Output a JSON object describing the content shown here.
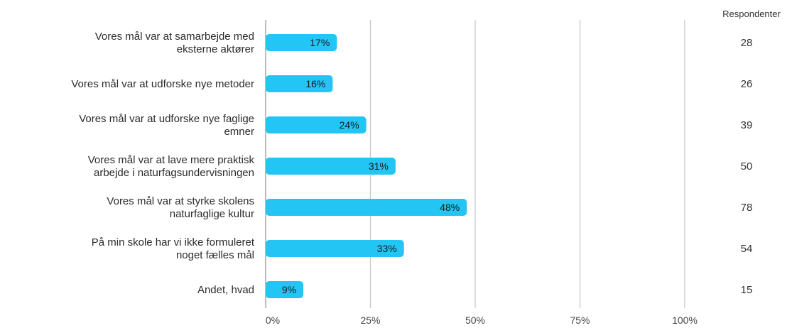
{
  "colors": {
    "bar": "#22c5f4",
    "grid": "#c8c8c8",
    "axis": "#9a9a9a"
  },
  "chart_data": {
    "type": "bar",
    "orientation": "horizontal",
    "categories": [
      [
        "Vores mål var at samarbejde med",
        "eksterne aktører"
      ],
      [
        "Vores mål var at udforske nye metoder"
      ],
      [
        "Vores mål var at udforske nye faglige",
        "emner"
      ],
      [
        "Vores mål var at lave mere praktisk",
        "arbejde i naturfagsundervisningen"
      ],
      [
        "Vores mål var at styrke skolens",
        "naturfaglige kultur"
      ],
      [
        "På min skole har vi ikke formuleret",
        "noget fælles mål"
      ],
      [
        "Andet, hvad"
      ]
    ],
    "values": [
      17,
      16,
      24,
      31,
      48,
      33,
      9
    ],
    "value_labels": [
      "17%",
      "16%",
      "24%",
      "31%",
      "48%",
      "33%",
      "9%"
    ],
    "respondents_header": "Respondenter",
    "respondents": [
      "28",
      "26",
      "39",
      "50",
      "78",
      "54",
      "15"
    ],
    "x_ticks": [
      0,
      25,
      50,
      75,
      100
    ],
    "x_tick_labels": [
      "0%",
      "25%",
      "50%",
      "75%",
      "100%"
    ],
    "xlim": [
      0,
      100
    ],
    "grid": true,
    "title": "",
    "xlabel": "",
    "ylabel": ""
  }
}
